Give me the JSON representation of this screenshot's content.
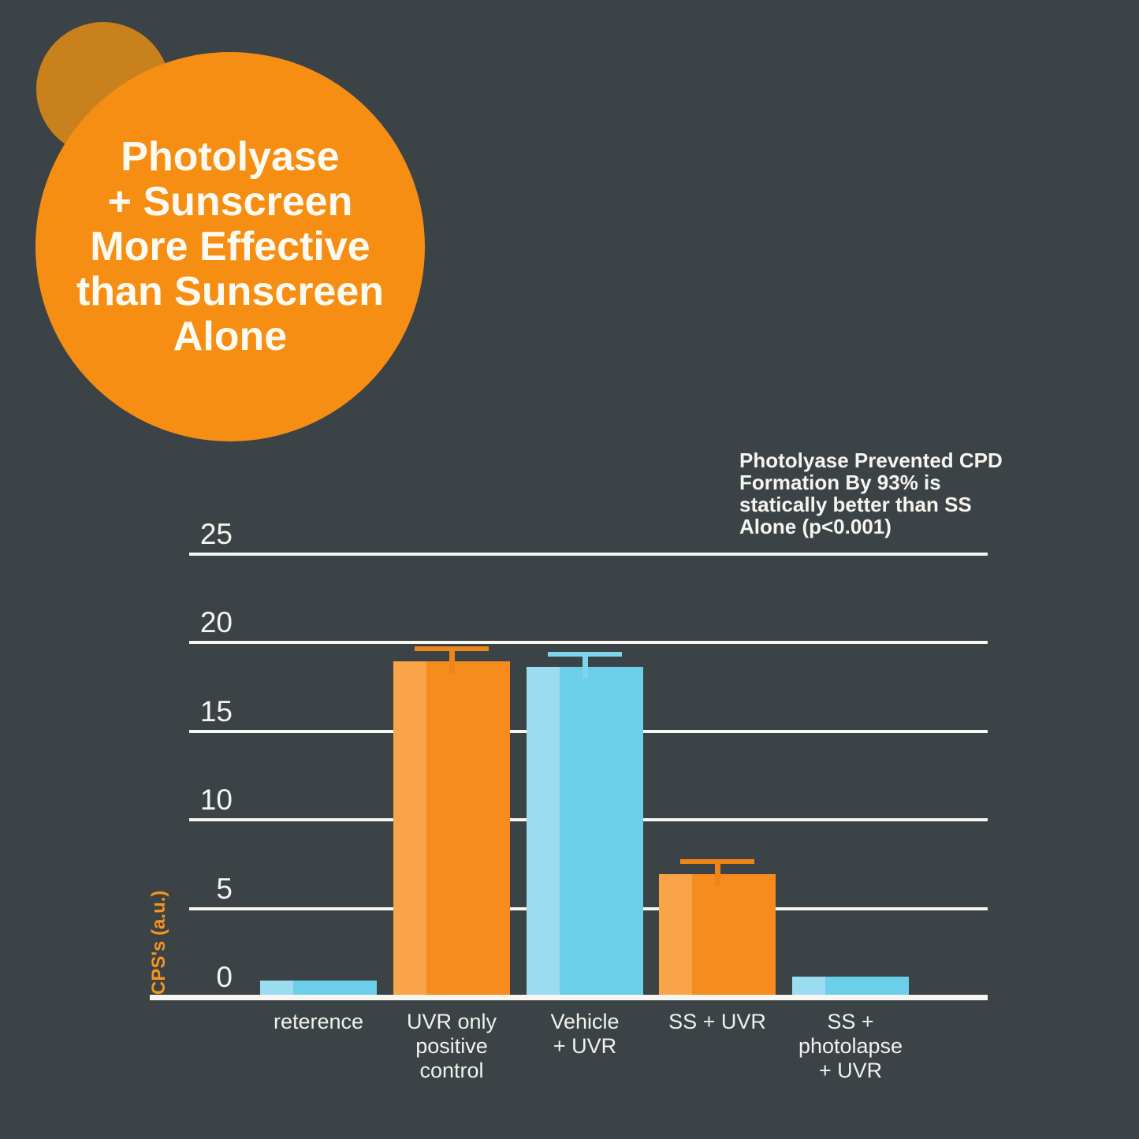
{
  "canvas": {
    "background": "#3B4347"
  },
  "hero": {
    "circle_color": "#F78E14",
    "back_circle_color": "#C8811C",
    "text_color": "#FDFAF1",
    "title_lines": [
      "Photolyase",
      "+ Sunscreen",
      "More Effective",
      "than Sunscreen",
      "Alone"
    ]
  },
  "annotation": {
    "color": "#F6F4EF",
    "lines": [
      "Photolyase Prevented CPD",
      "Formation By 93% is",
      "statically better than SS",
      "Alone (p<0.001)"
    ]
  },
  "chart_data": {
    "type": "bar",
    "title": "",
    "xlabel": "",
    "ylabel": "CPS's (a.u.)",
    "ylim": [
      0,
      25
    ],
    "yticks": [
      0,
      5,
      10,
      15,
      20,
      25
    ],
    "grid": true,
    "legend": "none",
    "categories": [
      "reterence",
      "UVR only positive control",
      "Vehicle + UVR",
      "SS + UVR",
      "SS + photolapse + UVR"
    ],
    "category_label_lines": [
      [
        "reterence"
      ],
      [
        "UVR only",
        "positive",
        "control"
      ],
      [
        "Vehicle",
        "+ UVR"
      ],
      [
        "SS + UVR"
      ],
      [
        "SS +",
        "photolapse",
        "+ UVR"
      ]
    ],
    "values": [
      0.8,
      18.8,
      18.5,
      6.8,
      1.0
    ],
    "errors": [
      null,
      0.9,
      0.9,
      0.9,
      null
    ],
    "bar_colors": [
      "blue",
      "orange",
      "blue",
      "orange",
      "blue"
    ],
    "palette": {
      "orange": "#F78C1E",
      "orange_light": "#FAA449",
      "orange_error": "#ED8617",
      "blue": "#6BCFE9",
      "blue_light": "#9BDCF1",
      "blue_error": "#7DD4EC",
      "grid": "#F8F6F1",
      "axis": "#F8F6F1",
      "tick_text": "#F6F4EF",
      "label_text": "#F3F1EC",
      "ylabel_color": "#F7941D"
    }
  }
}
